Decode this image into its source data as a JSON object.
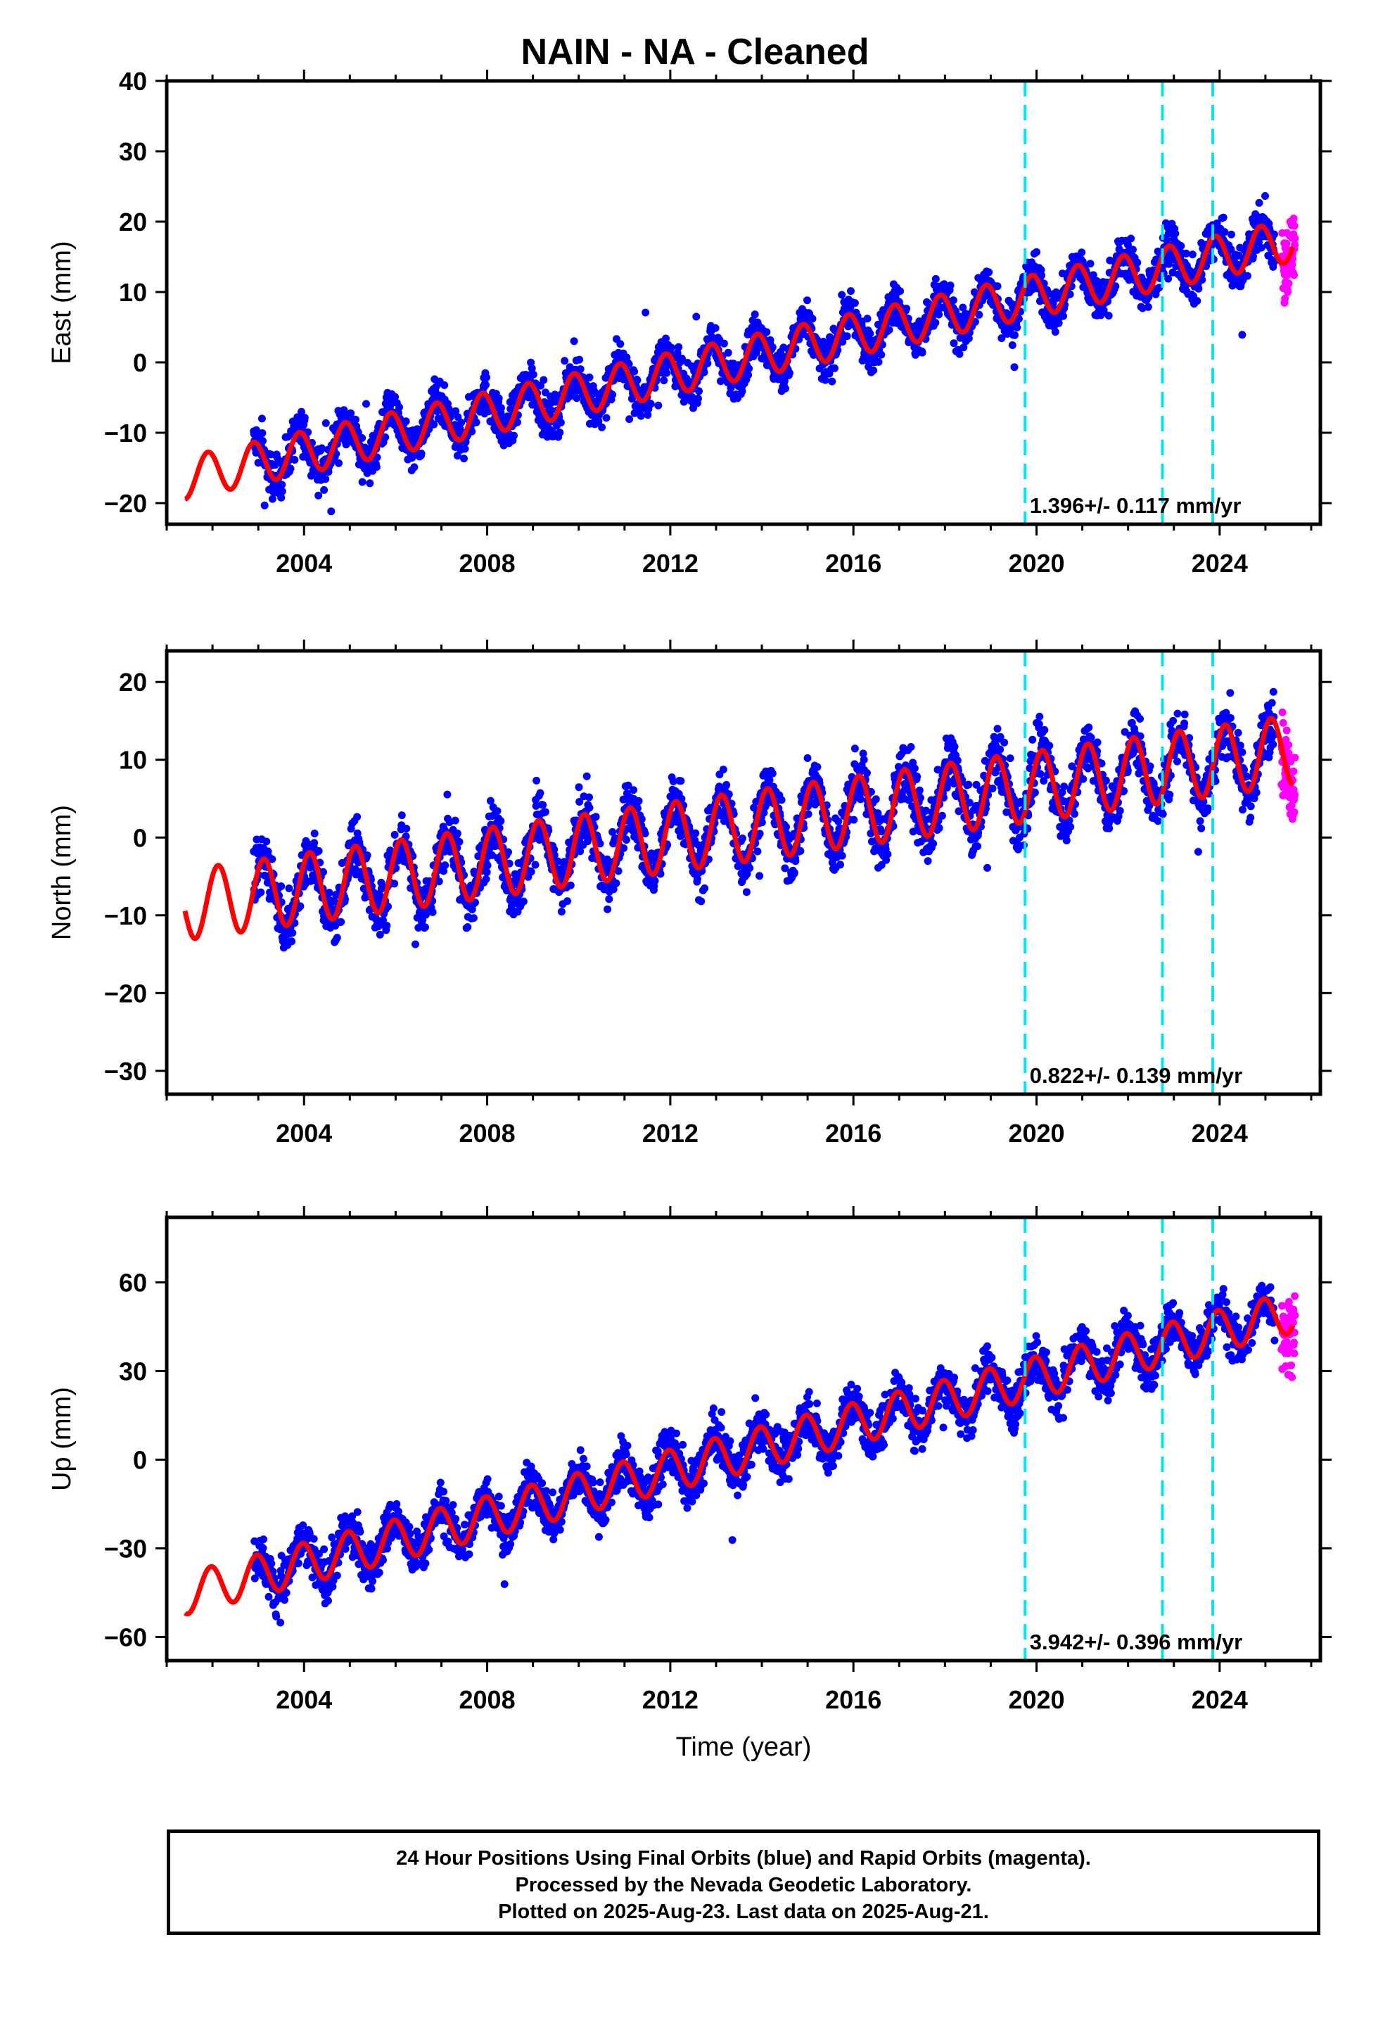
{
  "title": "NAIN  - NA - Cleaned",
  "footer": {
    "line1": "24 Hour Positions Using Final Orbits (blue) and Rapid Orbits (magenta).",
    "line2": "Processed by the Nevada Geodetic Laboratory.",
    "line3": "Plotted on 2025-Aug-23. Last data on 2025-Aug-21."
  },
  "colors": {
    "final": "#0000ff",
    "rapid": "#ff00ff",
    "model": "#ff0000",
    "steps": "#00e5ee",
    "frame": "#000000"
  },
  "chart_data": [
    {
      "type": "scatter",
      "title": "NAIN  - NA - Cleaned",
      "ylabel": "East (mm)",
      "xlabel": "",
      "xlim": [
        2001.0,
        2026.2
      ],
      "ylim": [
        -23,
        40
      ],
      "yticks": [
        40,
        30,
        20,
        10,
        0,
        -10,
        -20
      ],
      "xticks": [
        2004,
        2008,
        2012,
        2016,
        2020,
        2024
      ],
      "step_lines": [
        2019.75,
        2022.75,
        2023.85
      ],
      "rate_label": "1.396+/- 0.117 mm/yr",
      "model": {
        "start": 2001.4,
        "end": 2025.6,
        "intercept_2001": -17.0,
        "slope": 1.396,
        "seasonal_amp": 3.0,
        "phase": 2.2
      },
      "series": [
        {
          "values": "final",
          "start": 2002.9,
          "end": 2025.2,
          "scatter": 2.2
        },
        {
          "values": "rapid",
          "start": 2025.35,
          "end": 2025.65,
          "scatter": 3.5
        }
      ]
    },
    {
      "type": "scatter",
      "ylabel": "North (mm)",
      "xlabel": "",
      "xlim": [
        2001.0,
        2026.2
      ],
      "ylim": [
        -33,
        24
      ],
      "yticks": [
        20,
        10,
        0,
        -10,
        -20,
        -30
      ],
      "xticks": [
        2004,
        2008,
        2012,
        2016,
        2020,
        2024
      ],
      "step_lines": [
        2019.75,
        2022.75,
        2023.85
      ],
      "rate_label": "0.822+/- 0.139 mm/yr",
      "model": {
        "start": 2001.4,
        "end": 2025.6,
        "intercept_2001": -9.0,
        "slope": 0.822,
        "seasonal_amp": 4.5,
        "phase": 0.8
      },
      "series": [
        {
          "values": "final",
          "start": 2002.9,
          "end": 2025.2,
          "scatter": 2.6
        },
        {
          "values": "rapid",
          "start": 2025.35,
          "end": 2025.65,
          "scatter": 3.5
        }
      ]
    },
    {
      "type": "scatter",
      "ylabel": "Up (mm)",
      "xlabel": "Time (year)",
      "xlim": [
        2001.0,
        2026.2
      ],
      "ylim": [
        -68,
        82
      ],
      "yticks": [
        60,
        30,
        0,
        -30,
        -60
      ],
      "xticks": [
        2004,
        2008,
        2012,
        2016,
        2020,
        2024
      ],
      "step_lines": [
        2019.75,
        2022.75,
        2023.85
      ],
      "rate_label": "3.942+/- 0.396 mm/yr",
      "model": {
        "start": 2001.4,
        "end": 2025.6,
        "intercept_2001": -47.0,
        "slope": 3.942,
        "seasonal_amp": 7.0,
        "phase": 1.8
      },
      "series": [
        {
          "values": "final",
          "start": 2002.9,
          "end": 2025.2,
          "scatter": 5.5
        },
        {
          "values": "rapid",
          "start": 2025.35,
          "end": 2025.65,
          "scatter": 9.0
        }
      ]
    }
  ]
}
